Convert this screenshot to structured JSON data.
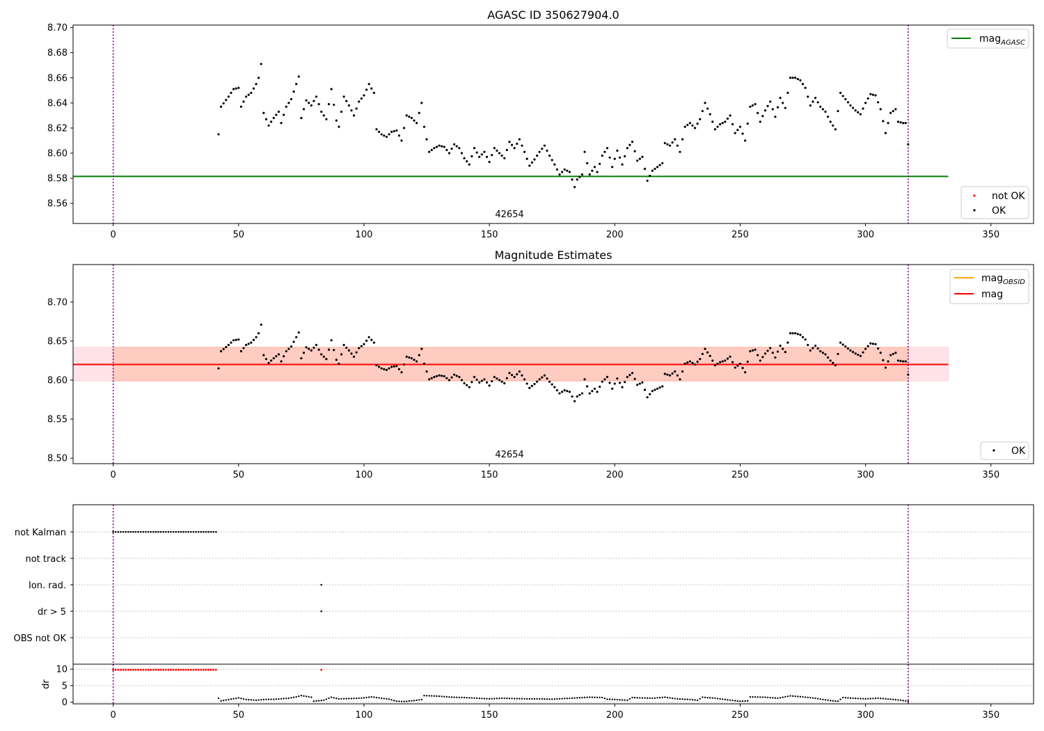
{
  "colors": {
    "ok": "#000000",
    "not_ok": "#ff0000",
    "mag_agasc": "#008000",
    "mag": "#ff0000",
    "mag_obsid": "#ffa500",
    "obs_boundary": "#800080",
    "band_outer": "#ffc0cb",
    "band_inner": "#ffa07a",
    "grid": "#b0b0b0"
  },
  "chart_data": [
    {
      "type": "scatter",
      "title": "AGASC ID 350627904.0",
      "xlim": [
        -16,
        367
      ],
      "ylim": [
        8.544,
        8.702
      ],
      "xticks": [
        0,
        50,
        100,
        150,
        200,
        250,
        300,
        350
      ],
      "yticks": [
        8.56,
        8.58,
        8.6,
        8.62,
        8.64,
        8.66,
        8.68,
        8.7
      ],
      "ytick_labels": [
        "8.56",
        "8.58",
        "8.60",
        "8.62",
        "8.64",
        "8.66",
        "8.68",
        "8.70"
      ],
      "obsid_label": {
        "text": "42654",
        "x": 158
      },
      "obs_boundaries": [
        0,
        317
      ],
      "hlines": [
        {
          "name": "mag_AGASC",
          "y": 8.5815,
          "x0": -16,
          "x1": 333
        }
      ],
      "series": [
        {
          "name": "OK",
          "anchors": [
            [
              42,
              8.615
            ],
            [
              43,
              8.637
            ],
            [
              46,
              8.645
            ],
            [
              48,
              8.651
            ],
            [
              50,
              8.652
            ],
            [
              51,
              8.637
            ],
            [
              53,
              8.645
            ],
            [
              55,
              8.648
            ],
            [
              57,
              8.655
            ],
            [
              58,
              8.66
            ],
            [
              59,
              8.671
            ],
            [
              60,
              8.632
            ],
            [
              62,
              8.622
            ],
            [
              64,
              8.628
            ],
            [
              66,
              8.633
            ],
            [
              67,
              8.624
            ],
            [
              69,
              8.637
            ],
            [
              71,
              8.643
            ],
            [
              73,
              8.655
            ],
            [
              74,
              8.661
            ],
            [
              75,
              8.628
            ],
            [
              77,
              8.642
            ],
            [
              79,
              8.638
            ],
            [
              81,
              8.645
            ],
            [
              83,
              8.633
            ],
            [
              85,
              8.627
            ],
            [
              87,
              8.651
            ],
            [
              89,
              8.626
            ],
            [
              90,
              8.621
            ],
            [
              92,
              8.645
            ],
            [
              94,
              8.638
            ],
            [
              96,
              8.63
            ],
            [
              98,
              8.641
            ],
            [
              100,
              8.646
            ],
            [
              102,
              8.655
            ],
            [
              104,
              8.648
            ],
            [
              105,
              8.619
            ],
            [
              107,
              8.615
            ],
            [
              109,
              8.613
            ],
            [
              111,
              8.617
            ],
            [
              113,
              8.618
            ],
            [
              115,
              8.61
            ],
            [
              117,
              8.63
            ],
            [
              119,
              8.628
            ],
            [
              121,
              8.624
            ],
            [
              123,
              8.64
            ],
            [
              124,
              8.621
            ],
            [
              126,
              8.601
            ],
            [
              128,
              8.604
            ],
            [
              130,
              8.606
            ],
            [
              132,
              8.605
            ],
            [
              134,
              8.6
            ],
            [
              136,
              8.607
            ],
            [
              138,
              8.604
            ],
            [
              140,
              8.596
            ],
            [
              142,
              8.591
            ],
            [
              144,
              8.604
            ],
            [
              146,
              8.597
            ],
            [
              148,
              8.601
            ],
            [
              150,
              8.593
            ],
            [
              152,
              8.604
            ],
            [
              154,
              8.6
            ],
            [
              156,
              8.596
            ],
            [
              158,
              8.609
            ],
            [
              160,
              8.604
            ],
            [
              162,
              8.611
            ],
            [
              164,
              8.601
            ],
            [
              166,
              8.59
            ],
            [
              168,
              8.595
            ],
            [
              170,
              8.601
            ],
            [
              172,
              8.606
            ],
            [
              174,
              8.598
            ],
            [
              176,
              8.591
            ],
            [
              178,
              8.583
            ],
            [
              180,
              8.587
            ],
            [
              182,
              8.585
            ],
            [
              184,
              8.573
            ],
            [
              185,
              8.579
            ],
            [
              187,
              8.583
            ],
            [
              188,
              8.601
            ],
            [
              190,
              8.583
            ],
            [
              192,
              8.589
            ],
            [
              193,
              8.585
            ],
            [
              195,
              8.598
            ],
            [
              197,
              8.604
            ],
            [
              199,
              8.589
            ],
            [
              201,
              8.602
            ],
            [
              203,
              8.591
            ],
            [
              205,
              8.604
            ],
            [
              207,
              8.609
            ],
            [
              209,
              8.594
            ],
            [
              211,
              8.597
            ],
            [
              213,
              8.578
            ],
            [
              215,
              8.586
            ],
            [
              217,
              8.589
            ],
            [
              219,
              8.592
            ],
            [
              220,
              8.608
            ],
            [
              222,
              8.606
            ],
            [
              224,
              8.611
            ],
            [
              226,
              8.601
            ],
            [
              228,
              8.621
            ],
            [
              230,
              8.624
            ],
            [
              232,
              8.62
            ],
            [
              234,
              8.627
            ],
            [
              236,
              8.64
            ],
            [
              238,
              8.631
            ],
            [
              240,
              8.619
            ],
            [
              242,
              8.623
            ],
            [
              244,
              8.625
            ],
            [
              246,
              8.63
            ],
            [
              248,
              8.616
            ],
            [
              250,
              8.621
            ],
            [
              252,
              8.61
            ],
            [
              254,
              8.637
            ],
            [
              256,
              8.639
            ],
            [
              258,
              8.625
            ],
            [
              260,
              8.634
            ],
            [
              262,
              8.641
            ],
            [
              264,
              8.629
            ],
            [
              266,
              8.644
            ],
            [
              268,
              8.636
            ],
            [
              270,
              8.66
            ],
            [
              272,
              8.66
            ],
            [
              274,
              8.658
            ],
            [
              276,
              8.652
            ],
            [
              278,
              8.638
            ],
            [
              280,
              8.644
            ],
            [
              282,
              8.637
            ],
            [
              284,
              8.633
            ],
            [
              286,
              8.625
            ],
            [
              288,
              8.619
            ],
            [
              290,
              8.648
            ],
            [
              292,
              8.643
            ],
            [
              294,
              8.638
            ],
            [
              296,
              8.634
            ],
            [
              298,
              8.631
            ],
            [
              300,
              8.64
            ],
            [
              302,
              8.647
            ],
            [
              304,
              8.646
            ],
            [
              306,
              8.635
            ],
            [
              308,
              8.616
            ],
            [
              310,
              8.632
            ],
            [
              312,
              8.635
            ],
            [
              313,
              8.625
            ],
            [
              315,
              8.624
            ],
            [
              316,
              8.624
            ],
            [
              317,
              8.607
            ]
          ]
        },
        {
          "name": "not OK",
          "anchors": []
        }
      ],
      "legend": [
        {
          "label": "mag",
          "sub": "AGASC",
          "position": "top-right",
          "kind": "line"
        },
        {
          "label": "not OK",
          "position": "bottom-right",
          "kind": "dot"
        },
        {
          "label": "OK",
          "position": "bottom-right",
          "kind": "dot"
        }
      ]
    },
    {
      "type": "scatter",
      "title": "Magnitude Estimates",
      "xlim": [
        -16,
        367
      ],
      "ylim": [
        8.493,
        8.748
      ],
      "xticks": [
        0,
        50,
        100,
        150,
        200,
        250,
        300,
        350
      ],
      "yticks": [
        8.5,
        8.55,
        8.6,
        8.65,
        8.7
      ],
      "ytick_labels": [
        "8.50",
        "8.55",
        "8.60",
        "8.65",
        "8.70"
      ],
      "obsid_label": {
        "text": "42654",
        "x": 158
      },
      "obs_boundaries": [
        0,
        317
      ],
      "hlines": [
        {
          "name": "mag",
          "y": 8.62,
          "x0": -16,
          "x1": 333
        }
      ],
      "bands": [
        {
          "name": "mag-range",
          "y0": 8.599,
          "y1": 8.642,
          "x0": -16,
          "x1": 333,
          "kind": "outer"
        },
        {
          "name": "mag_OBSID-range",
          "y0": 8.599,
          "y1": 8.642,
          "x0": 0,
          "x1": 317,
          "kind": "inner"
        }
      ],
      "series": [
        {
          "name": "OK",
          "anchors": "same_as_panel_1"
        }
      ],
      "legend": [
        {
          "label": "mag",
          "sub": "OBSID",
          "position": "top-right",
          "kind": "line"
        },
        {
          "label": "mag",
          "position": "top-right",
          "kind": "line"
        },
        {
          "label": "OK",
          "position": "bottom-right",
          "kind": "dot"
        }
      ]
    },
    {
      "type": "scatter",
      "title": "",
      "xlim": [
        -16,
        367
      ],
      "xticks": [
        0,
        50,
        100,
        150,
        200,
        250,
        300,
        350
      ],
      "obs_boundaries": [
        0,
        317
      ],
      "flag_categories": [
        "not Kalman",
        "not track",
        "Ion. rad.",
        "dr > 5",
        "OBS not OK"
      ],
      "flags": [
        {
          "category": "not Kalman",
          "ranges": [
            [
              0,
              41
            ]
          ],
          "points": []
        },
        {
          "category": "not track",
          "ranges": [],
          "points": []
        },
        {
          "category": "Ion. rad.",
          "ranges": [],
          "points": [
            83
          ]
        },
        {
          "category": "dr > 5",
          "ranges": [],
          "points": [
            83
          ]
        },
        {
          "category": "OBS not OK",
          "ranges": [],
          "points": []
        }
      ],
      "dr": {
        "ylabel": "dr",
        "ylim": [
          -0.5,
          11.5
        ],
        "yticks": [
          0,
          5,
          10
        ],
        "clipped_value": 9.8,
        "clipped_ranges": [
          [
            0,
            41
          ]
        ],
        "clipped_points": [
          83
        ],
        "anchors": [
          [
            42,
            1.2
          ],
          [
            43,
            0.4
          ],
          [
            46,
            0.8
          ],
          [
            50,
            1.3
          ],
          [
            53,
            0.8
          ],
          [
            57,
            0.6
          ],
          [
            60,
            0.8
          ],
          [
            65,
            0.9
          ],
          [
            70,
            1.2
          ],
          [
            73,
            1.6
          ],
          [
            75,
            2.0
          ],
          [
            79,
            1.5
          ],
          [
            80,
            0.3
          ],
          [
            84,
            0.6
          ],
          [
            87,
            1.5
          ],
          [
            90,
            1.0
          ],
          [
            95,
            1.1
          ],
          [
            100,
            1.3
          ],
          [
            103,
            1.6
          ],
          [
            105,
            1.4
          ],
          [
            110,
            0.9
          ],
          [
            113,
            0.3
          ],
          [
            116,
            0.2
          ],
          [
            120,
            0.5
          ],
          [
            123,
            0.8
          ],
          [
            124,
            2.0
          ],
          [
            130,
            1.8
          ],
          [
            135,
            1.5
          ],
          [
            140,
            1.4
          ],
          [
            145,
            1.2
          ],
          [
            150,
            1.0
          ],
          [
            155,
            1.2
          ],
          [
            160,
            1.1
          ],
          [
            165,
            1.0
          ],
          [
            170,
            1.0
          ],
          [
            175,
            0.9
          ],
          [
            180,
            1.1
          ],
          [
            185,
            1.3
          ],
          [
            190,
            1.5
          ],
          [
            195,
            1.4
          ],
          [
            197,
            0.9
          ],
          [
            200,
            0.8
          ],
          [
            205,
            0.6
          ],
          [
            207,
            1.4
          ],
          [
            210,
            1.3
          ],
          [
            215,
            1.2
          ],
          [
            220,
            1.5
          ],
          [
            225,
            1.0
          ],
          [
            230,
            0.8
          ],
          [
            233,
            0.6
          ],
          [
            235,
            1.5
          ],
          [
            240,
            1.2
          ],
          [
            245,
            0.7
          ],
          [
            250,
            0.3
          ],
          [
            253,
            0.4
          ],
          [
            254,
            1.6
          ],
          [
            260,
            1.5
          ],
          [
            265,
            1.2
          ],
          [
            270,
            1.9
          ],
          [
            275,
            1.6
          ],
          [
            280,
            1.2
          ],
          [
            283,
            0.8
          ],
          [
            287,
            0.4
          ],
          [
            289,
            0.3
          ],
          [
            291,
            1.4
          ],
          [
            295,
            1.2
          ],
          [
            300,
            1.0
          ],
          [
            305,
            1.2
          ],
          [
            310,
            0.9
          ],
          [
            314,
            0.6
          ],
          [
            317,
            0.3
          ]
        ]
      }
    }
  ]
}
